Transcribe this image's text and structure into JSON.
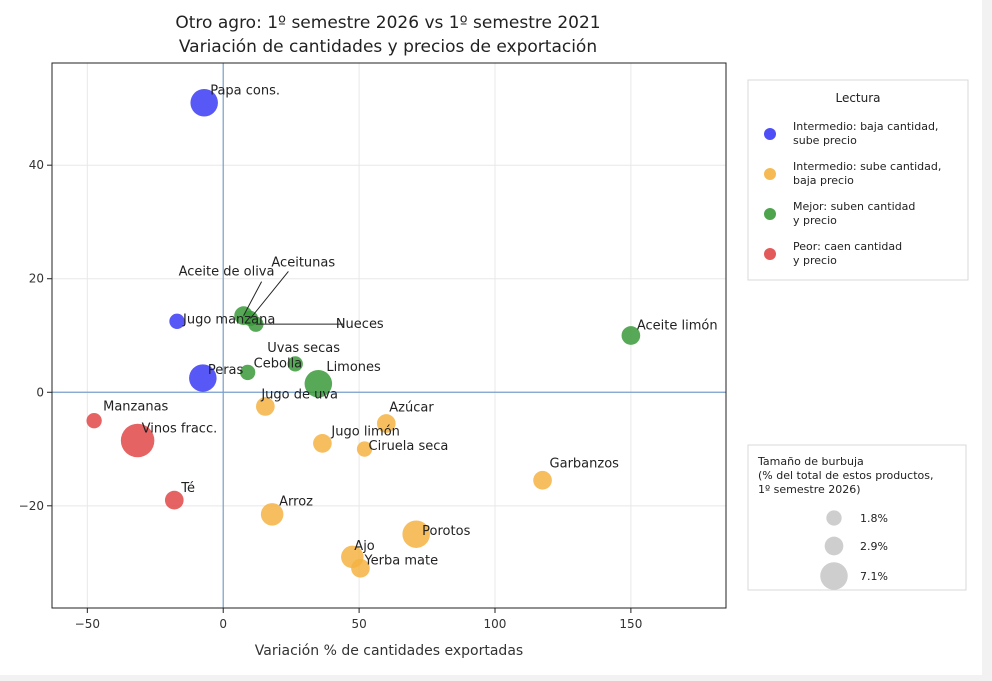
{
  "chart_data": {
    "type": "scatter",
    "title": [
      "Otro agro: 1º semestre 2026 vs 1º semestre 2021",
      "Variación de cantidades y precios de exportación"
    ],
    "xlabel": "Variación % de cantidades exportadas",
    "ylabel": "",
    "xlim": [
      -63,
      185
    ],
    "ylim": [
      -38,
      58
    ],
    "xticks": [
      -50,
      0,
      50,
      100,
      150
    ],
    "yticks": [
      -20,
      0,
      20,
      40
    ],
    "xtick_labels": [
      "−50",
      "0",
      "50",
      "100",
      "150"
    ],
    "ytick_labels": [
      "−20",
      "0",
      "20",
      "40"
    ],
    "grid": true,
    "reference_lines": {
      "x": 0,
      "y": 0
    },
    "colors": {
      "intermedio_baja_cantidad": "#3b3bf5",
      "intermedio_sube_cantidad": "#f5b342",
      "mejor": "#3a9a3a",
      "peor": "#e04848"
    },
    "points": [
      {
        "label": "Papa cons.",
        "x": -7,
        "y": 51,
        "size_pct": 7.1,
        "group": "intermedio_baja_cantidad"
      },
      {
        "label": "Jugo manzana",
        "x": -17,
        "y": 12.5,
        "size_pct": 1.8,
        "group": "intermedio_baja_cantidad"
      },
      {
        "label": "Peras",
        "x": -7.5,
        "y": 2.5,
        "size_pct": 7.1,
        "group": "intermedio_baja_cantidad"
      },
      {
        "label": "Aceite de oliva",
        "x": 7.5,
        "y": 13.5,
        "size_pct": 2.9,
        "group": "mejor"
      },
      {
        "label": "Aceitunas",
        "x": 10,
        "y": 13,
        "size_pct": 1.8,
        "group": "mejor"
      },
      {
        "label": "Nueces",
        "x": 12,
        "y": 12,
        "size_pct": 1.8,
        "group": "mejor"
      },
      {
        "label": "Cebolla",
        "x": 9,
        "y": 3.5,
        "size_pct": 1.8,
        "group": "mejor"
      },
      {
        "label": "Uvas secas",
        "x": 26.5,
        "y": 5,
        "size_pct": 1.8,
        "group": "mejor"
      },
      {
        "label": "Limones",
        "x": 35,
        "y": 1.5,
        "size_pct": 7.1,
        "group": "mejor"
      },
      {
        "label": "Aceite limón",
        "x": 150,
        "y": 10,
        "size_pct": 2.9,
        "group": "mejor"
      },
      {
        "label": "Jugo de uva",
        "x": 15.5,
        "y": -2.5,
        "size_pct": 2.9,
        "group": "intermedio_sube_cantidad"
      },
      {
        "label": "Azúcar",
        "x": 60,
        "y": -5.5,
        "size_pct": 2.9,
        "group": "intermedio_sube_cantidad"
      },
      {
        "label": "Jugo limón",
        "x": 36.5,
        "y": -9,
        "size_pct": 2.9,
        "group": "intermedio_sube_cantidad"
      },
      {
        "label": "Ciruela seca",
        "x": 52,
        "y": -10,
        "size_pct": 1.8,
        "group": "intermedio_sube_cantidad"
      },
      {
        "label": "Garbanzos",
        "x": 117.5,
        "y": -15.5,
        "size_pct": 2.9,
        "group": "intermedio_sube_cantidad"
      },
      {
        "label": "Arroz",
        "x": 18,
        "y": -21.5,
        "size_pct": 4.5,
        "group": "intermedio_sube_cantidad"
      },
      {
        "label": "Porotos",
        "x": 71,
        "y": -25,
        "size_pct": 7.1,
        "group": "intermedio_sube_cantidad"
      },
      {
        "label": "Ajo",
        "x": 47.5,
        "y": -29,
        "size_pct": 4.5,
        "group": "intermedio_sube_cantidad"
      },
      {
        "label": "Yerba mate",
        "x": 50.5,
        "y": -31,
        "size_pct": 2.9,
        "group": "intermedio_sube_cantidad"
      },
      {
        "label": "Manzanas",
        "x": -47.5,
        "y": -5,
        "size_pct": 1.8,
        "group": "peor"
      },
      {
        "label": "Vinos fracc.",
        "x": -31.5,
        "y": -8.5,
        "size_pct": 11,
        "group": "peor"
      },
      {
        "label": "Té",
        "x": -18,
        "y": -19,
        "size_pct": 2.9,
        "group": "peor"
      }
    ],
    "legend": {
      "placement": "right-upper",
      "title": "Lectura",
      "entries": [
        {
          "group": "intermedio_baja_cantidad",
          "lines": [
            "Intermedio: baja cantidad,",
            "sube precio"
          ]
        },
        {
          "group": "intermedio_sube_cantidad",
          "lines": [
            "Intermedio: sube cantidad,",
            "baja precio"
          ]
        },
        {
          "group": "mejor",
          "lines": [
            "Mejor: suben cantidad",
            "y precio"
          ]
        },
        {
          "group": "peor",
          "lines": [
            "Peor: caen cantidad",
            "y precio"
          ]
        }
      ]
    },
    "size_legend": {
      "placement": "right-lower",
      "title": [
        "Tamaño de burbuja",
        "(% del total de estos productos,",
        "1º semestre 2026)"
      ],
      "entries": [
        {
          "label": "1.8%",
          "size_pct": 1.8
        },
        {
          "label": "2.9%",
          "size_pct": 2.9
        },
        {
          "label": "7.1%",
          "size_pct": 7.1
        }
      ]
    }
  }
}
